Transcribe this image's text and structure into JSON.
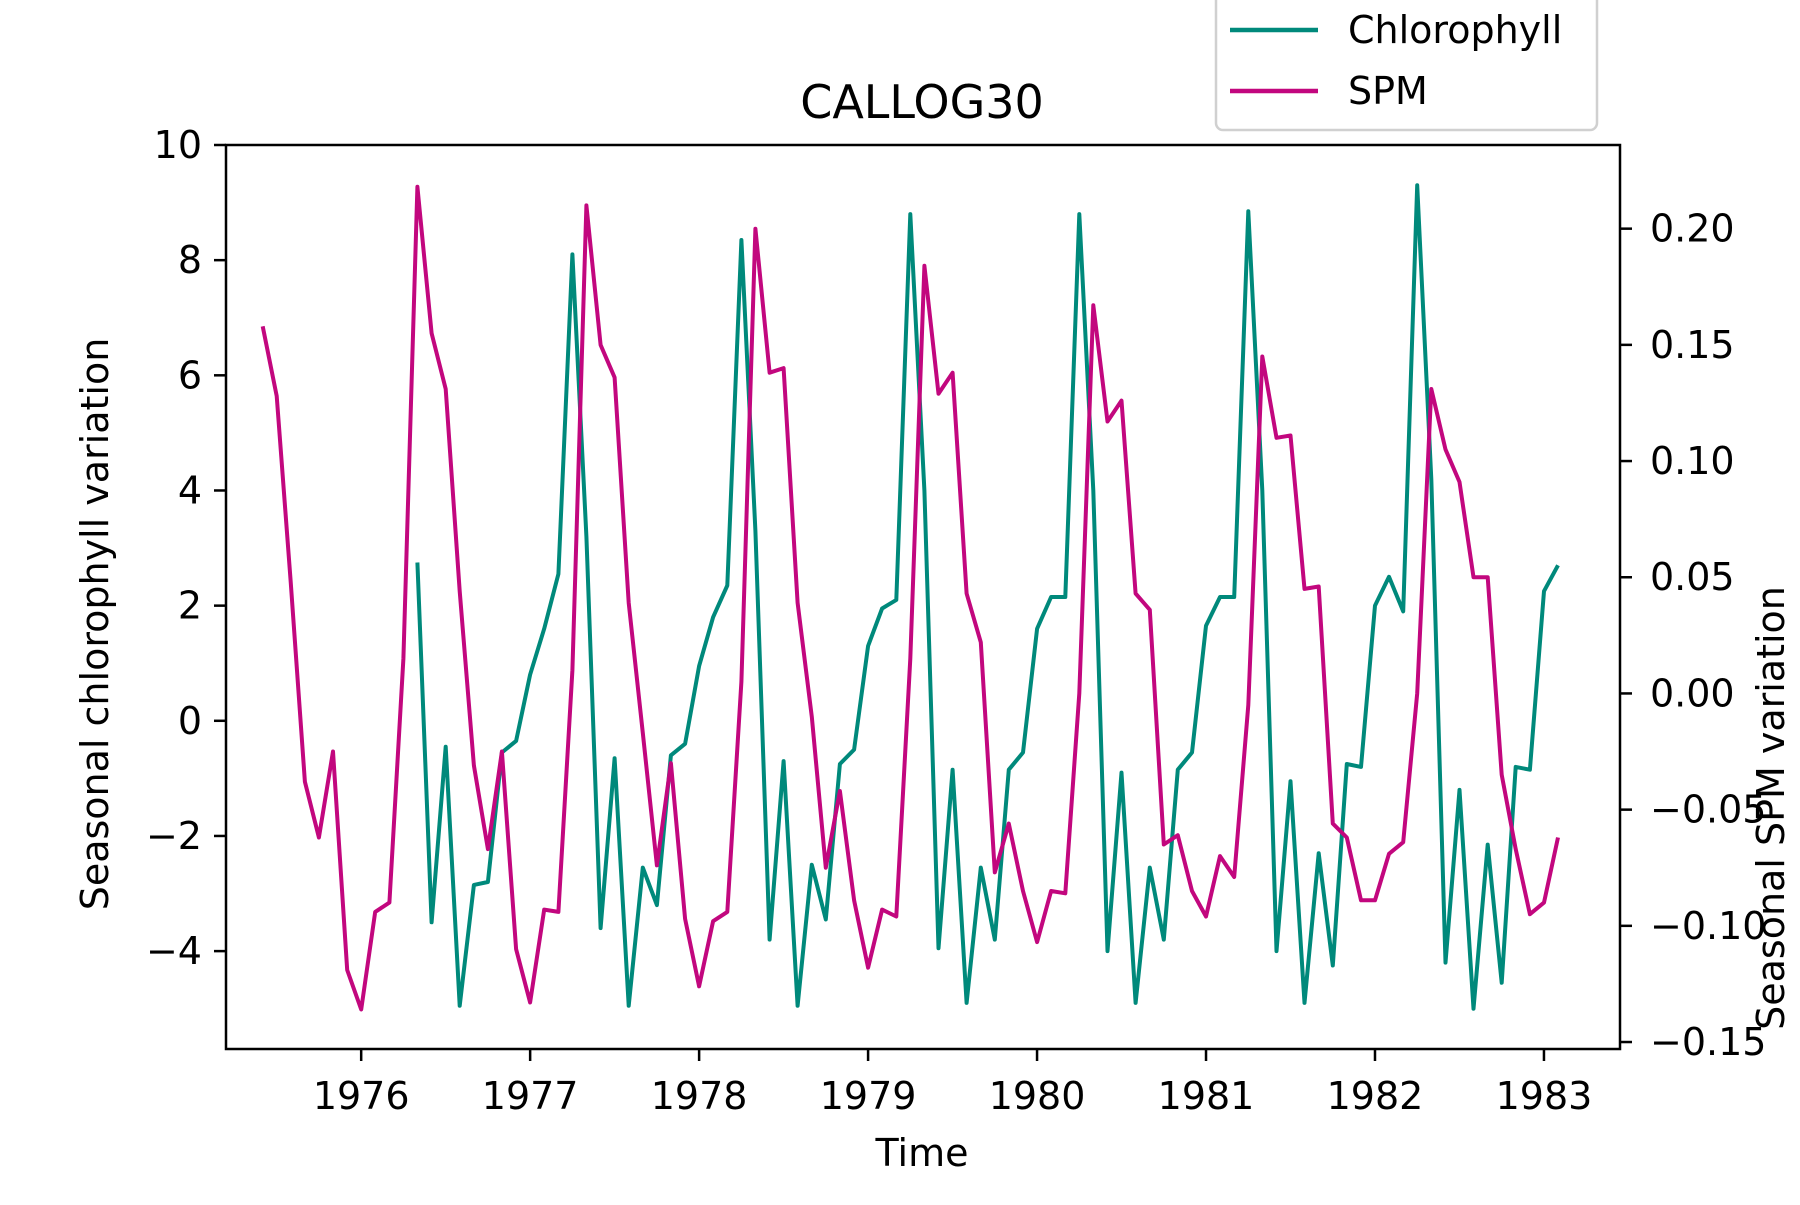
{
  "chart_data": {
    "type": "line",
    "title": "CALLOG30",
    "xlabel": "Time",
    "ylabel_left": "Seasonal chlorophyll variation",
    "ylabel_right": "Seasonal SPM variation",
    "xlim": [
      1975.2,
      1983.45
    ],
    "ylim_left": [
      -5.7,
      10
    ],
    "ylim_right": [
      -0.153,
      0.236
    ],
    "xticks": [
      1976,
      1977,
      1978,
      1979,
      1980,
      1981,
      1982,
      1983
    ],
    "xtick_labels": [
      "1976",
      "1977",
      "1978",
      "1979",
      "1980",
      "1981",
      "1982",
      "1983"
    ],
    "yticks_left": [
      -4,
      -2,
      0,
      2,
      4,
      6,
      8,
      10
    ],
    "ytick_labels_left": [
      "−4",
      "−2",
      "0",
      "2",
      "4",
      "6",
      "8",
      "10"
    ],
    "yticks_right": [
      -0.15,
      -0.1,
      -0.05,
      0.0,
      0.05,
      0.1,
      0.15,
      0.2
    ],
    "ytick_labels_right": [
      "−0.15",
      "−0.10",
      "−0.05",
      "0.00",
      "0.05",
      "0.10",
      "0.15",
      "0.20"
    ],
    "grid": false,
    "legend_position": "top-right, above plot",
    "colors": {
      "Chlorophyll": "#00897B",
      "SPM": "#C2077E"
    },
    "series": [
      {
        "name": "Chlorophyll",
        "axis": "left",
        "x": [
          1976.333,
          1976.417,
          1976.5,
          1976.583,
          1976.667,
          1976.75,
          1976.833,
          1976.917,
          1977.0,
          1977.083,
          1977.167,
          1977.25,
          1977.333,
          1977.417,
          1977.5,
          1977.583,
          1977.667,
          1977.75,
          1977.833,
          1977.917,
          1978.0,
          1978.083,
          1978.167,
          1978.25,
          1978.333,
          1978.417,
          1978.5,
          1978.583,
          1978.667,
          1978.75,
          1978.833,
          1978.917,
          1979.0,
          1979.083,
          1979.167,
          1979.25,
          1979.333,
          1979.417,
          1979.5,
          1979.583,
          1979.667,
          1979.75,
          1979.833,
          1979.917,
          1980.0,
          1980.083,
          1980.167,
          1980.25,
          1980.333,
          1980.417,
          1980.5,
          1980.583,
          1980.667,
          1980.75,
          1980.833,
          1980.917,
          1981.0,
          1981.083,
          1981.167,
          1981.25,
          1981.333,
          1981.417,
          1981.5,
          1981.583,
          1981.667,
          1981.75,
          1981.833,
          1981.917,
          1982.0,
          1982.083,
          1982.167,
          1982.25,
          1982.333,
          1982.417,
          1982.5,
          1982.583,
          1982.667,
          1982.75,
          1982.833,
          1982.917,
          1983.0,
          1983.083
        ],
        "values": [
          2.75,
          -3.5,
          -0.45,
          -4.95,
          -2.85,
          -2.8,
          -0.55,
          -0.35,
          0.8,
          1.6,
          2.55,
          8.1,
          3.2,
          -3.6,
          -0.65,
          -4.95,
          -2.55,
          -3.2,
          -0.6,
          -0.4,
          0.95,
          1.8,
          2.35,
          8.35,
          3.3,
          -3.8,
          -0.7,
          -4.95,
          -2.5,
          -3.45,
          -0.75,
          -0.5,
          1.3,
          1.95,
          2.1,
          8.8,
          4.0,
          -3.95,
          -0.85,
          -4.9,
          -2.55,
          -3.8,
          -0.85,
          -0.55,
          1.6,
          2.15,
          2.15,
          8.8,
          4.0,
          -4.0,
          -0.9,
          -4.9,
          -2.55,
          -3.8,
          -0.85,
          -0.55,
          1.65,
          2.15,
          2.15,
          8.85,
          4.0,
          -4.0,
          -1.05,
          -4.9,
          -2.3,
          -4.25,
          -0.75,
          -0.8,
          2.0,
          2.5,
          1.9,
          9.3,
          4.2,
          -4.2,
          -1.2,
          -5.0,
          -2.15,
          -4.55,
          -0.8,
          -0.85,
          2.25,
          2.7
        ]
      },
      {
        "name": "SPM",
        "axis": "right",
        "x": [
          1975.417,
          1975.5,
          1975.583,
          1975.667,
          1975.75,
          1975.833,
          1975.917,
          1976.0,
          1976.083,
          1976.167,
          1976.25,
          1976.333,
          1976.417,
          1976.5,
          1976.583,
          1976.667,
          1976.75,
          1976.833,
          1976.917,
          1977.0,
          1977.083,
          1977.167,
          1977.25,
          1977.333,
          1977.417,
          1977.5,
          1977.583,
          1977.667,
          1977.75,
          1977.833,
          1977.917,
          1978.0,
          1978.083,
          1978.167,
          1978.25,
          1978.333,
          1978.417,
          1978.5,
          1978.583,
          1978.667,
          1978.75,
          1978.833,
          1978.917,
          1979.0,
          1979.083,
          1979.167,
          1979.25,
          1979.333,
          1979.417,
          1979.5,
          1979.583,
          1979.667,
          1979.75,
          1979.833,
          1979.917,
          1980.0,
          1980.083,
          1980.167,
          1980.25,
          1980.333,
          1980.417,
          1980.5,
          1980.583,
          1980.667,
          1980.75,
          1980.833,
          1980.917,
          1981.0,
          1981.083,
          1981.167,
          1981.25,
          1981.333,
          1981.417,
          1981.5,
          1981.583,
          1981.667,
          1981.75,
          1981.833,
          1981.917,
          1982.0,
          1982.083,
          1982.167,
          1982.25,
          1982.333,
          1982.417,
          1982.5,
          1982.583,
          1982.667,
          1982.75,
          1982.833,
          1982.917,
          1983.0,
          1983.083
        ],
        "values": [
          0.158,
          0.128,
          0.048,
          -0.038,
          -0.062,
          -0.025,
          -0.119,
          -0.136,
          -0.094,
          -0.09,
          0.015,
          0.218,
          0.155,
          0.131,
          0.044,
          -0.031,
          -0.067,
          -0.025,
          -0.11,
          -0.133,
          -0.093,
          -0.094,
          0.01,
          0.21,
          0.15,
          0.136,
          0.039,
          -0.017,
          -0.074,
          -0.03,
          -0.097,
          -0.126,
          -0.098,
          -0.094,
          0.005,
          0.2,
          0.138,
          0.14,
          0.039,
          -0.01,
          -0.075,
          -0.042,
          -0.089,
          -0.118,
          -0.093,
          -0.096,
          0.015,
          0.184,
          0.129,
          0.138,
          0.043,
          0.022,
          -0.077,
          -0.056,
          -0.085,
          -0.107,
          -0.085,
          -0.086,
          0.0,
          0.167,
          0.117,
          0.126,
          0.043,
          0.036,
          -0.065,
          -0.061,
          -0.085,
          -0.096,
          -0.07,
          -0.079,
          -0.005,
          0.145,
          0.11,
          0.111,
          0.045,
          0.046,
          -0.056,
          -0.062,
          -0.089,
          -0.089,
          -0.069,
          -0.064,
          0.0,
          0.131,
          0.105,
          0.091,
          0.05,
          0.05,
          -0.035,
          -0.067,
          -0.095,
          -0.09,
          -0.062
        ]
      }
    ]
  }
}
